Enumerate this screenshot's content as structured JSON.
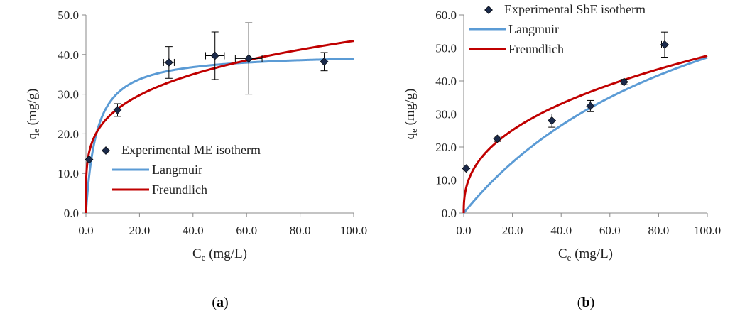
{
  "chart_data": [
    {
      "type": "scatter",
      "caption": "a",
      "xlabel": {
        "main": "C",
        "sub": "e",
        "unit": " (mg/L)"
      },
      "ylabel": {
        "main": "q",
        "sub": "e",
        "unit": " (mg/g)"
      },
      "xlim": [
        0,
        100
      ],
      "ylim": [
        0,
        50
      ],
      "xticks": [
        0,
        20,
        40,
        60,
        80,
        100
      ],
      "yticks": [
        0,
        10,
        20,
        30,
        40,
        50
      ],
      "tick_labels_x": [
        "0.0",
        "20.0",
        "40.0",
        "60.0",
        "80.0",
        "100.0"
      ],
      "tick_labels_y": [
        "0.0",
        "10.0",
        "20.0",
        "30.0",
        "40.0",
        "50.0"
      ],
      "grid": false,
      "legend_placement": "bottom-right",
      "series": [
        {
          "name": "Experimental ME isotherm",
          "kind": "points",
          "color": "#1b2a4a",
          "points": [
            {
              "x": 1.2,
              "y": 13.5,
              "xerr": 0,
              "yerr": 0
            },
            {
              "x": 11.8,
              "y": 26.0,
              "xerr": 0,
              "yerr": 1.6
            },
            {
              "x": 31.0,
              "y": 38.0,
              "xerr": 2.0,
              "yerr": 4.0
            },
            {
              "x": 48.2,
              "y": 39.7,
              "xerr": 3.5,
              "yerr": 6.0
            },
            {
              "x": 60.8,
              "y": 39.0,
              "xerr": 5.0,
              "yerr": 9.0
            },
            {
              "x": 89.0,
              "y": 38.2,
              "xerr": 0,
              "yerr": 2.3
            }
          ]
        },
        {
          "name": "Langmuir",
          "kind": "curve",
          "color": "#5b9bd5",
          "model": "langmuir",
          "params": {
            "qmax": 40.5,
            "KL": 0.25
          }
        },
        {
          "name": "Freundlich",
          "kind": "curve",
          "color": "#c00000",
          "model": "freundlich",
          "params": {
            "KF": 14.7,
            "n": 4.25
          }
        }
      ]
    },
    {
      "type": "scatter",
      "caption": "b",
      "xlabel": {
        "main": "C",
        "sub": "e",
        "unit": " (mg/L)"
      },
      "ylabel": {
        "main": "q",
        "sub": "e",
        "unit": " (mg/g)"
      },
      "xlim": [
        0,
        100
      ],
      "ylim": [
        0,
        60
      ],
      "xticks": [
        0,
        20,
        40,
        60,
        80,
        100
      ],
      "yticks": [
        0,
        10,
        20,
        30,
        40,
        50,
        60
      ],
      "tick_labels_x": [
        "0.0",
        "20.0",
        "40.0",
        "60.0",
        "80.0",
        "100.0"
      ],
      "tick_labels_y": [
        "0.0",
        "10.0",
        "20.0",
        "30.0",
        "40.0",
        "50.0",
        "60.0"
      ],
      "grid": false,
      "legend_placement": "top-left",
      "series": [
        {
          "name": "Experimental SbE isotherm",
          "kind": "points",
          "color": "#1b2a4a",
          "points": [
            {
              "x": 1.0,
              "y": 13.5,
              "xerr": 0,
              "yerr": 0
            },
            {
              "x": 13.8,
              "y": 22.5,
              "xerr": 0,
              "yerr": 0.8
            },
            {
              "x": 36.2,
              "y": 28.0,
              "xerr": 0,
              "yerr": 2.0
            },
            {
              "x": 52.0,
              "y": 32.4,
              "xerr": 0,
              "yerr": 1.7
            },
            {
              "x": 65.8,
              "y": 39.7,
              "xerr": 0,
              "yerr": 0.8
            },
            {
              "x": 82.5,
              "y": 51.0,
              "xerr": 1.3,
              "yerr": 3.8
            }
          ]
        },
        {
          "name": "Langmuir",
          "kind": "curve",
          "color": "#5b9bd5",
          "model": "langmuir",
          "params": {
            "qmax": 97.6,
            "KL": 0.00933
          }
        },
        {
          "name": "Freundlich",
          "kind": "curve",
          "color": "#c00000",
          "model": "freundlich",
          "params": {
            "KF": 7.62,
            "n": 2.513
          }
        }
      ]
    }
  ]
}
